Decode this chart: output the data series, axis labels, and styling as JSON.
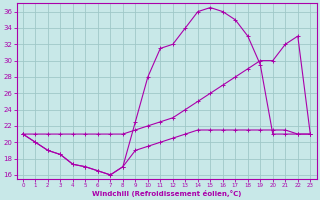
{
  "xlabel": "Windchill (Refroidissement éolien,°C)",
  "bg_color": "#c8e8e8",
  "grid_color": "#a0c8c8",
  "line_color": "#aa00aa",
  "xlim": [
    -0.5,
    23.5
  ],
  "ylim": [
    15.5,
    37
  ],
  "yticks": [
    16,
    18,
    20,
    22,
    24,
    26,
    28,
    30,
    32,
    34,
    36
  ],
  "xticks": [
    0,
    1,
    2,
    3,
    4,
    5,
    6,
    7,
    8,
    9,
    10,
    11,
    12,
    13,
    14,
    15,
    16,
    17,
    18,
    19,
    20,
    21,
    22,
    23
  ],
  "s1x": [
    0,
    1,
    2,
    3,
    4,
    5,
    6,
    7,
    8,
    9,
    10,
    11,
    12,
    13,
    14,
    15,
    16,
    17,
    18,
    19,
    20,
    21,
    22,
    23
  ],
  "s1y": [
    21,
    20,
    19,
    18.5,
    17.3,
    17,
    16.5,
    16,
    17,
    22.5,
    28,
    31.5,
    32,
    34,
    36,
    36.5,
    36,
    35,
    33,
    29.5,
    21,
    21,
    21,
    21
  ],
  "s2x": [
    0,
    1,
    2,
    3,
    4,
    5,
    6,
    7,
    8,
    9,
    10,
    11,
    12,
    13,
    14,
    15,
    16,
    17,
    18,
    19,
    20,
    21,
    22,
    23
  ],
  "s2y": [
    21,
    21,
    21,
    21,
    21,
    21,
    21,
    21,
    21,
    21.5,
    22,
    22.5,
    23,
    24,
    25,
    26,
    27,
    28,
    29,
    30,
    30,
    32,
    33,
    21
  ],
  "s3x": [
    0,
    1,
    2,
    3,
    4,
    5,
    6,
    7,
    8,
    9,
    10,
    11,
    12,
    13,
    14,
    15,
    16,
    17,
    18,
    19,
    20,
    21,
    22,
    23
  ],
  "s3y": [
    21,
    20,
    19,
    18.5,
    17.3,
    17,
    16.5,
    16,
    17,
    19,
    19.5,
    20,
    20.5,
    21,
    21.5,
    21.5,
    21.5,
    21.5,
    21.5,
    21.5,
    21.5,
    21.5,
    21,
    21
  ]
}
